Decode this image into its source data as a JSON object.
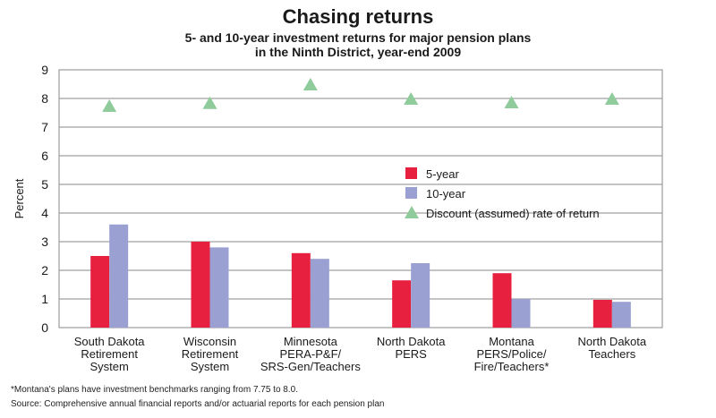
{
  "title": "Chasing returns",
  "subtitle": "5- and 10-year investment returns for major pension plans in the Ninth District, year-end 2009",
  "footnote": "*Montana's plans have investment benchmarks ranging from 7.75 to 8.0.",
  "source": "Source: Comprehensive annual financial reports and/or actuarial reports for each pension plan",
  "chart_data": {
    "type": "bar",
    "title": "Chasing returns",
    "subtitle": "5- and 10-year investment returns for major pension plans in the Ninth District, year-end 2009",
    "ylabel": "Percent",
    "xlabel": "",
    "ylim": [
      0,
      9
    ],
    "yticks": [
      "0",
      "1",
      "2",
      "3",
      "4",
      "5",
      "6",
      "7",
      "8",
      "9"
    ],
    "grid": true,
    "legend_position": "center-right",
    "categories": [
      [
        "South Dakota",
        "Retirement",
        "System"
      ],
      [
        "Wisconsin",
        "Retirement",
        "System"
      ],
      [
        "Minnesota",
        "PERA-P&F/",
        "SRS-Gen/Teachers"
      ],
      [
        "North Dakota",
        "PERS"
      ],
      [
        "Montana",
        "PERS/Police/",
        "Fire/Teachers*"
      ],
      [
        "North Dakota",
        "Teachers"
      ]
    ],
    "series": [
      {
        "name": "5-year",
        "type": "bar",
        "color": "#e8203f",
        "values": [
          2.5,
          3.0,
          2.6,
          1.65,
          1.9,
          0.97
        ]
      },
      {
        "name": "10-year",
        "type": "bar",
        "color": "#9aa0d2",
        "values": [
          3.6,
          2.8,
          2.4,
          2.25,
          1.0,
          0.9
        ]
      },
      {
        "name": "Discount (assumed) rate of return",
        "type": "marker",
        "marker": "triangle",
        "color": "#8fcb9b",
        "values": [
          7.75,
          7.85,
          8.5,
          8.0,
          7.875,
          8.0
        ]
      }
    ]
  }
}
